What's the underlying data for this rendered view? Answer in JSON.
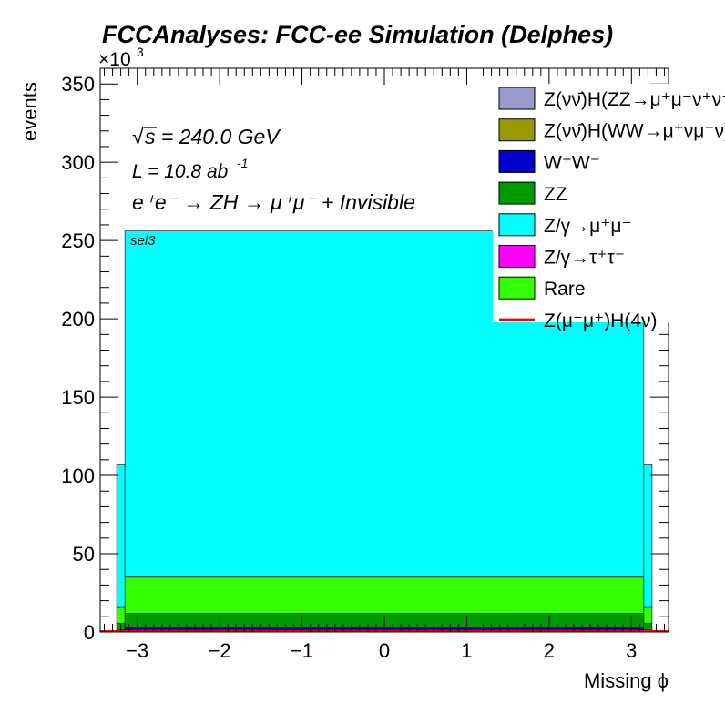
{
  "chart_data": {
    "type": "bar",
    "title": "FCCAnalyses: FCC-ee Simulation (Delphes)",
    "ylabel": "events",
    "xlabel": "Missing ϕ",
    "y_exponent_label": "×10",
    "y_exponent_power": "3",
    "xlim": [
      -3.45,
      3.45
    ],
    "ylim": [
      0,
      360
    ],
    "x_ticks": [
      "−3",
      "−2",
      "−1",
      "0",
      "1",
      "2",
      "3"
    ],
    "x_tick_values": [
      -3,
      -2,
      -1,
      0,
      1,
      2,
      3
    ],
    "y_ticks": [
      "0",
      "50",
      "100",
      "150",
      "200",
      "250",
      "300",
      "350"
    ],
    "y_tick_values": [
      0,
      50,
      100,
      150,
      200,
      250,
      300,
      350
    ],
    "annotations": {
      "sqrt_s_prefix": "√",
      "energy": "s = 240.0 GeV",
      "lumi_base": "L = 10.8 ab",
      "lumi_power": "-1",
      "process": "e⁺e⁻ → ZH → μ⁺μ⁻ + Invisible",
      "selection": "sel3"
    },
    "bins": [
      {
        "x_low": -3.25,
        "x_high": -3.15
      },
      {
        "x_low": -3.15,
        "x_high": 3.15
      },
      {
        "x_low": 3.15,
        "x_high": 3.25
      }
    ],
    "series": [
      {
        "name": "Z(νν̄)H(ZZ→μ⁺μ⁻ν⁺ν⁻)",
        "color": "#9999cc",
        "values": [
          0.1,
          0.2,
          0.1
        ]
      },
      {
        "name": "Z(νν̄)H(WW→μ⁺νμ⁻ν)",
        "color": "#999900",
        "values": [
          0.1,
          0.3,
          0.1
        ]
      },
      {
        "name": "W⁺W⁻",
        "color": "#0000cc",
        "values": [
          1.0,
          2.5,
          1.0
        ]
      },
      {
        "name": "ZZ",
        "color": "#009900",
        "values": [
          4.5,
          9.0,
          4.5
        ]
      },
      {
        "name": "Rare",
        "color": "#33ff00",
        "values": [
          10.0,
          23.0,
          10.0
        ]
      },
      {
        "name": "Z/γ→τ⁺τ⁻",
        "color": "#ff00ff",
        "values": [
          0.0,
          0.1,
          0.0
        ]
      },
      {
        "name": "Z/γ→μ⁺μ⁻",
        "color": "#00ffff",
        "values": [
          91.0,
          221.0,
          91.0
        ]
      }
    ],
    "signal": {
      "name": "Z(μ⁻μ⁺)H(4ν)",
      "color": "#ff0000",
      "value": 0.6
    },
    "legend_order": [
      "Z(νν̄)H(ZZ→μ⁺μ⁻ν⁺ν⁻)",
      "Z(νν̄)H(WW→μ⁺νμ⁻ν)",
      "W⁺W⁻",
      "ZZ",
      "Z/γ→μ⁺μ⁻",
      "Z/γ→τ⁺τ⁻",
      "Rare",
      "Z(μ⁻μ⁺)H(4ν)"
    ],
    "legend_position": "top-right"
  }
}
